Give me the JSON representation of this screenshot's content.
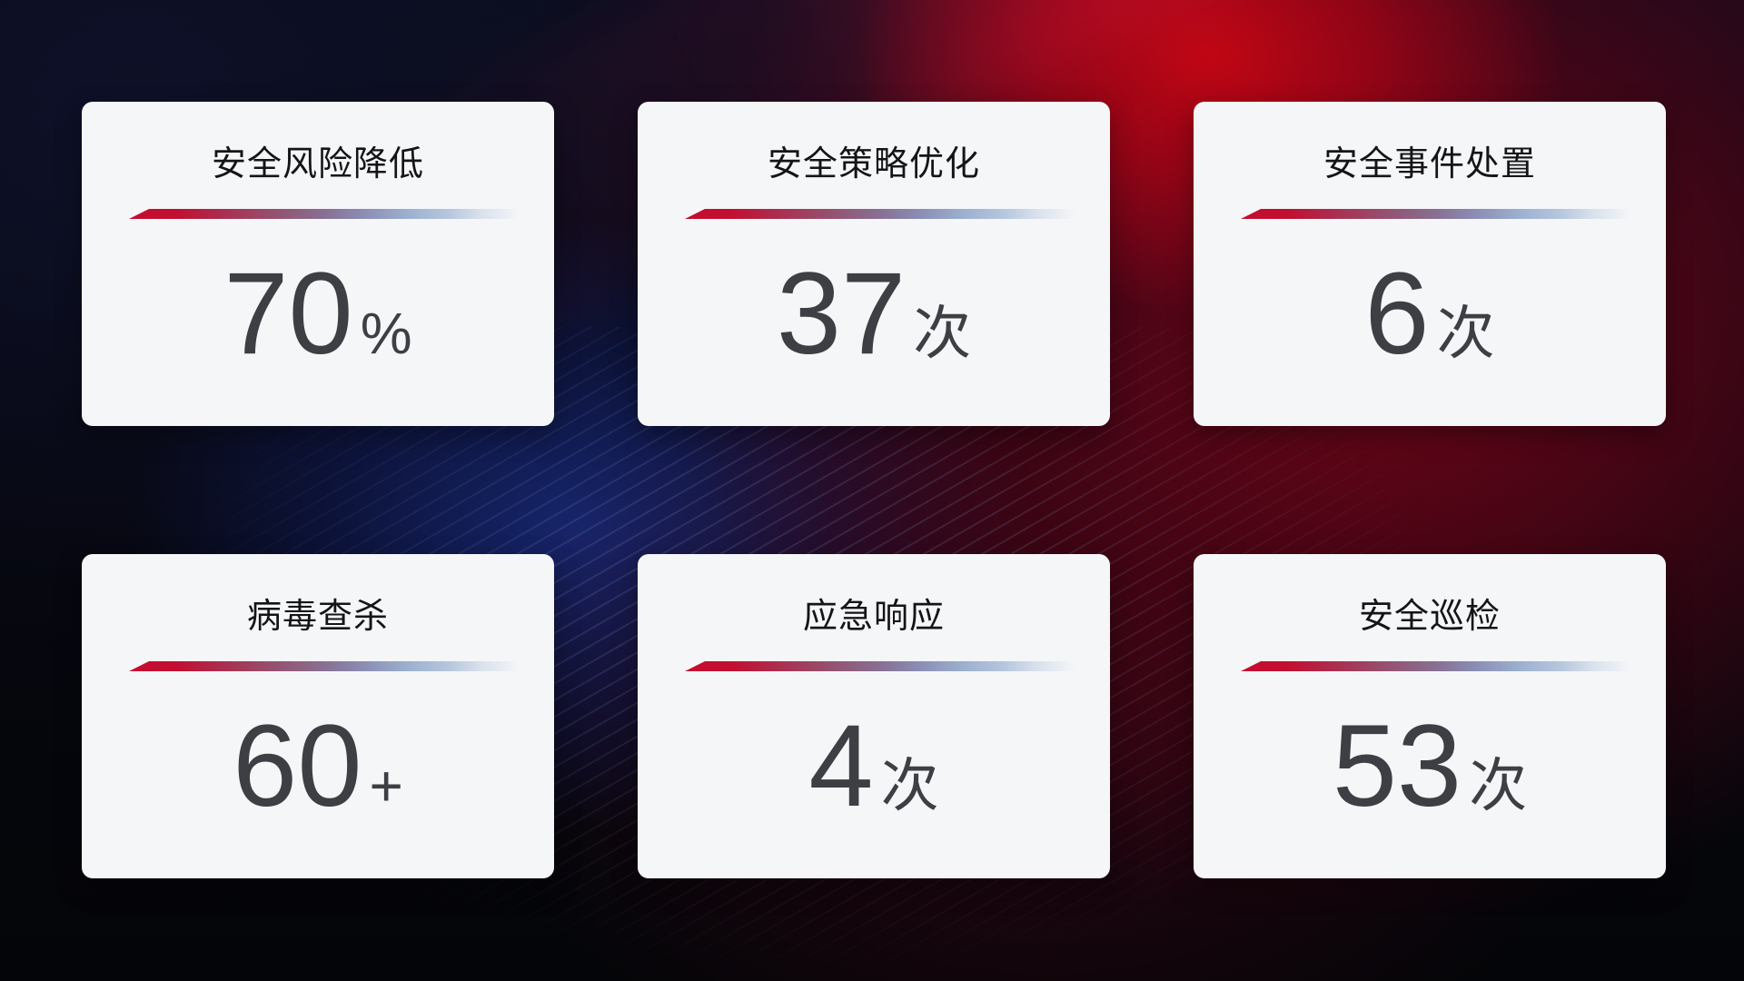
{
  "colors": {
    "card_background": "#f5f6f8",
    "title_text": "#151518",
    "value_text": "#3e3f44",
    "divider_red": "#c50d2f",
    "divider_blue": "#9bafce",
    "background_navy": "#0a0d24",
    "background_blue_glow": "#16266e",
    "background_red": "#c1061a"
  },
  "cards": [
    {
      "title": "安全风险降低",
      "value": "70",
      "unit": "%"
    },
    {
      "title": "安全策略优化",
      "value": "37",
      "unit": "次"
    },
    {
      "title": "安全事件处置",
      "value": "6",
      "unit": "次"
    },
    {
      "title": "病毒查杀",
      "value": "60",
      "unit": "+"
    },
    {
      "title": "应急响应",
      "value": "4",
      "unit": "次"
    },
    {
      "title": "安全巡检",
      "value": "53",
      "unit": "次"
    }
  ]
}
